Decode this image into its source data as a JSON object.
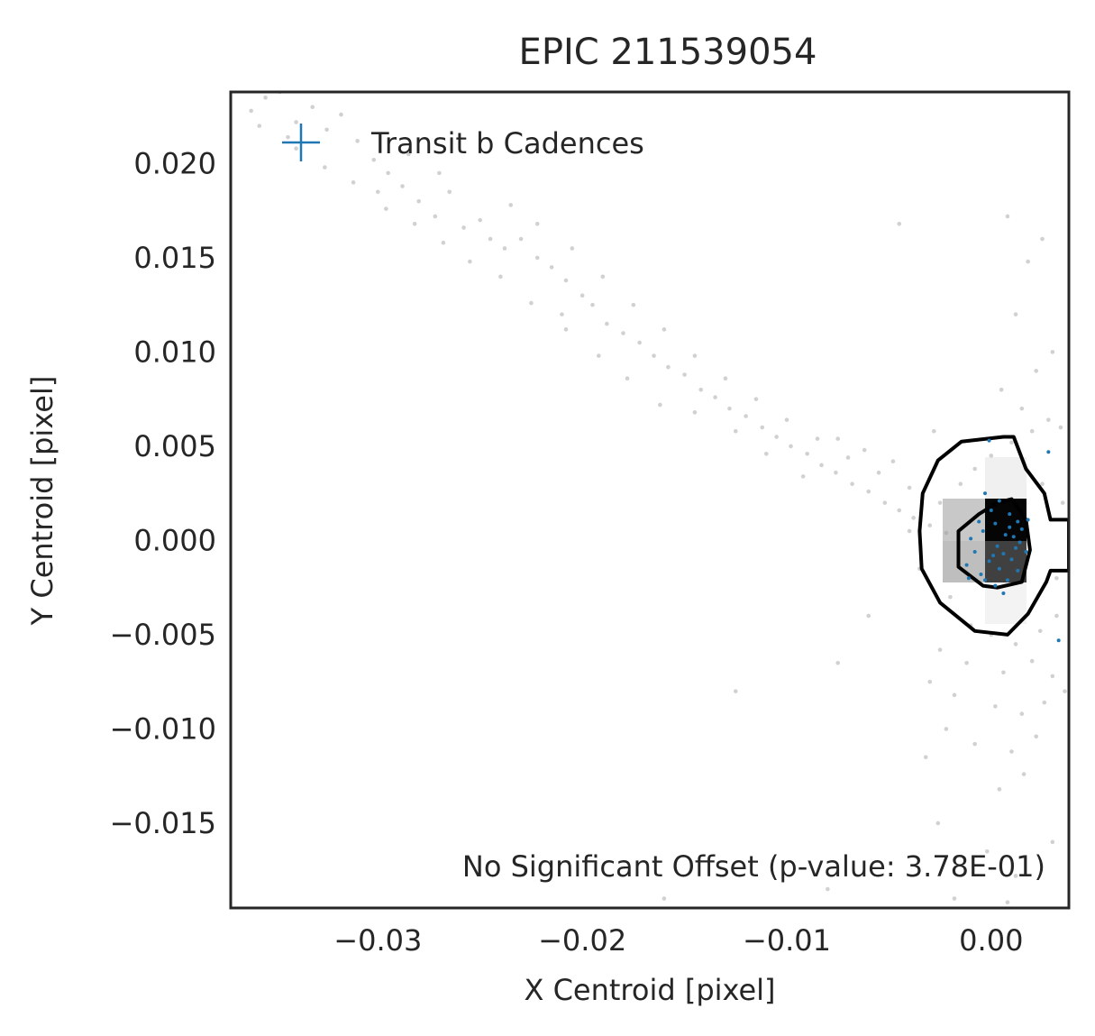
{
  "chart_data": {
    "type": "scatter",
    "title": "EPIC 211539054",
    "xlabel": "X Centroid [pixel]",
    "ylabel": "Y Centroid [pixel]",
    "xlim": [
      -0.0372,
      0.0038
    ],
    "ylim": [
      -0.0195,
      0.0238
    ],
    "xticks": [
      -0.03,
      -0.02,
      -0.01,
      0.0
    ],
    "xtick_labels": [
      "−0.03",
      "−0.02",
      "−0.01",
      "0.00"
    ],
    "yticks": [
      0.02,
      0.015,
      0.01,
      0.005,
      0.0,
      -0.005,
      -0.01,
      -0.015
    ],
    "ytick_labels": [
      "0.020",
      "0.015",
      "0.010",
      "0.005",
      "0.000",
      "−0.005",
      "−0.010",
      "−0.015"
    ],
    "grid": false,
    "legend": {
      "position": "top-left",
      "entries": [
        {
          "label": "Transit b Cadences",
          "marker": "plus",
          "color": "#1f77b4"
        }
      ]
    },
    "annotation": "No Significant Offset (p-value: 3.78E-01)",
    "colors": {
      "transit": "#1f77b4",
      "background": "#9a9a9a",
      "contour": "#000000",
      "frame": "#262626"
    },
    "series": [
      {
        "name": "Transit b Cadences",
        "points": [
          [
            -0.0003,
            0.0025
          ],
          [
            0.0004,
            0.0021
          ],
          [
            0.0009,
            0.0014
          ],
          [
            0.0013,
            0.001
          ],
          [
            0.0002,
            0.0009
          ],
          [
            -0.0004,
            0.0005
          ],
          [
            0.0007,
            0.0003
          ],
          [
            0.0011,
            0.0002
          ],
          [
            0.0014,
            -0.0001
          ],
          [
            0.0003,
            -0.0003
          ],
          [
            -0.0008,
            -0.0006
          ],
          [
            0.0006,
            -0.0007
          ],
          [
            0.001,
            -0.001
          ],
          [
            -0.0001,
            -0.0011
          ],
          [
            -0.0012,
            -0.0013
          ],
          [
            0.0004,
            -0.0015
          ],
          [
            0.0013,
            -0.0016
          ],
          [
            -0.0005,
            -0.0018
          ],
          [
            0.0008,
            -0.0021
          ],
          [
            0.0002,
            -0.0024
          ],
          [
            0.0015,
            0.0006
          ],
          [
            -0.001,
            0.0001
          ],
          [
            0.0,
            0.0016
          ],
          [
            0.0018,
            0.0011
          ],
          [
            -0.0003,
            -0.0021
          ],
          [
            0.0006,
            -0.0028
          ],
          [
            0.0028,
            0.0047
          ],
          [
            0.0033,
            -0.0053
          ],
          [
            -0.0001,
            0.0053
          ],
          [
            0.0012,
            -0.0004
          ],
          [
            -0.0006,
            0.001
          ],
          [
            0.0009,
            0.0007
          ],
          [
            0.0001,
            -0.0008
          ],
          [
            0.0017,
            -0.0006
          ],
          [
            -0.0011,
            -0.002
          ]
        ]
      },
      {
        "name": "",
        "points": [
          [
            -0.0355,
            0.0235
          ],
          [
            -0.0348,
            0.0238
          ],
          [
            -0.0362,
            0.0228
          ],
          [
            -0.034,
            0.0222
          ],
          [
            -0.0332,
            0.023
          ],
          [
            -0.0325,
            0.0218
          ],
          [
            -0.0318,
            0.0226
          ],
          [
            -0.034,
            0.0208
          ],
          [
            -0.031,
            0.0212
          ],
          [
            -0.0302,
            0.0202
          ],
          [
            -0.0295,
            0.0195
          ],
          [
            -0.03,
            0.0185
          ],
          [
            -0.0288,
            0.0188
          ],
          [
            -0.028,
            0.018
          ],
          [
            -0.0272,
            0.0172
          ],
          [
            -0.0265,
            0.0185
          ],
          [
            -0.0258,
            0.0166
          ],
          [
            -0.025,
            0.017
          ],
          [
            -0.0245,
            0.016
          ],
          [
            -0.0238,
            0.0155
          ],
          [
            -0.023,
            0.016
          ],
          [
            -0.0222,
            0.015
          ],
          [
            -0.0215,
            0.0145
          ],
          [
            -0.0208,
            0.0138
          ],
          [
            -0.02,
            0.013
          ],
          [
            -0.021,
            0.012
          ],
          [
            -0.0195,
            0.0125
          ],
          [
            -0.0188,
            0.0115
          ],
          [
            -0.018,
            0.011
          ],
          [
            -0.0172,
            0.0105
          ],
          [
            -0.0165,
            0.0098
          ],
          [
            -0.0158,
            0.0092
          ],
          [
            -0.015,
            0.0088
          ],
          [
            -0.0142,
            0.008
          ],
          [
            -0.0135,
            0.0076
          ],
          [
            -0.0128,
            0.007
          ],
          [
            -0.012,
            0.0066
          ],
          [
            -0.0112,
            0.006
          ],
          [
            -0.0105,
            0.0055
          ],
          [
            -0.0098,
            0.005
          ],
          [
            -0.009,
            0.0046
          ],
          [
            -0.0083,
            0.004
          ],
          [
            -0.0076,
            0.0036
          ],
          [
            -0.0068,
            0.003
          ],
          [
            -0.006,
            0.0026
          ],
          [
            -0.0052,
            0.002
          ],
          [
            -0.0045,
            0.0016
          ],
          [
            -0.0038,
            0.0012
          ],
          [
            -0.003,
            0.0008
          ],
          [
            -0.0022,
            0.0004
          ],
          [
            -0.0285,
            0.0205
          ],
          [
            -0.027,
            0.0195
          ],
          [
            -0.0235,
            0.0178
          ],
          [
            -0.0222,
            0.0168
          ],
          [
            -0.0205,
            0.0155
          ],
          [
            -0.019,
            0.014
          ],
          [
            -0.0175,
            0.0125
          ],
          [
            -0.016,
            0.0112
          ],
          [
            -0.0145,
            0.0098
          ],
          [
            -0.013,
            0.0086
          ],
          [
            -0.0115,
            0.0075
          ],
          [
            -0.01,
            0.0064
          ],
          [
            -0.0085,
            0.0054
          ],
          [
            -0.007,
            0.0044
          ],
          [
            -0.0055,
            0.0036
          ],
          [
            -0.004,
            0.0028
          ],
          [
            -0.0025,
            0.002
          ],
          [
            -0.0015,
            0.003
          ],
          [
            -0.0008,
            0.0038
          ],
          [
            0.0,
            0.0045
          ],
          [
            0.001,
            0.0052
          ],
          [
            0.002,
            0.0058
          ],
          [
            0.0028,
            0.0064
          ],
          [
            0.0034,
            0.006
          ],
          [
            0.0015,
            0.007
          ],
          [
            0.0005,
            0.008
          ],
          [
            0.0022,
            0.009
          ],
          [
            0.003,
            0.01
          ],
          [
            0.0012,
            0.012
          ],
          [
            0.0025,
            0.016
          ],
          [
            0.0008,
            0.0172
          ],
          [
            0.0018,
            0.0148
          ],
          [
            -0.0045,
            0.0168
          ],
          [
            -0.0028,
            0.0058
          ],
          [
            -0.0048,
            0.0042
          ],
          [
            -0.0062,
            0.0048
          ],
          [
            -0.0075,
            0.0054
          ],
          [
            -0.0092,
            0.0034
          ],
          [
            -0.011,
            0.0046
          ],
          [
            -0.0125,
            0.0058
          ],
          [
            -0.0145,
            0.0068
          ],
          [
            -0.0162,
            0.0072
          ],
          [
            -0.0178,
            0.0086
          ],
          [
            -0.0192,
            0.0098
          ],
          [
            -0.0208,
            0.0112
          ],
          [
            -0.0225,
            0.0126
          ],
          [
            -0.024,
            0.014
          ],
          [
            -0.0255,
            0.0148
          ],
          [
            -0.0268,
            0.0158
          ],
          [
            -0.0282,
            0.0168
          ],
          [
            -0.0296,
            0.0176
          ],
          [
            -0.0312,
            0.019
          ],
          [
            -0.0326,
            0.0198
          ],
          [
            -0.0344,
            0.0214
          ],
          [
            -0.0358,
            0.022
          ],
          [
            -0.002,
            -0.003
          ],
          [
            -0.001,
            -0.0045
          ],
          [
            0.0,
            -0.005
          ],
          [
            0.0012,
            -0.0055
          ],
          [
            0.0024,
            -0.0048
          ],
          [
            0.0032,
            -0.004
          ],
          [
            -0.0025,
            -0.0058
          ],
          [
            -0.0012,
            -0.0065
          ],
          [
            0.0006,
            -0.007
          ],
          [
            0.002,
            -0.0064
          ],
          [
            0.003,
            -0.0072
          ],
          [
            0.0036,
            -0.008
          ],
          [
            -0.003,
            -0.0075
          ],
          [
            -0.0018,
            -0.0082
          ],
          [
            0.0002,
            -0.0088
          ],
          [
            0.0015,
            -0.0092
          ],
          [
            0.0026,
            -0.0086
          ],
          [
            -0.0022,
            -0.01
          ],
          [
            -0.0008,
            -0.0108
          ],
          [
            0.001,
            -0.0112
          ],
          [
            0.0022,
            -0.0104
          ],
          [
            -0.0032,
            -0.0115
          ],
          [
            0.0004,
            -0.0132
          ],
          [
            0.0016,
            -0.0124
          ],
          [
            -0.0026,
            -0.015
          ],
          [
            -0.0002,
            -0.0165
          ],
          [
            0.0012,
            -0.0178
          ],
          [
            -0.0018,
            -0.019
          ],
          [
            0.0008,
            -0.0192
          ],
          [
            0.003,
            -0.016
          ],
          [
            -0.006,
            -0.004
          ],
          [
            -0.0075,
            -0.0065
          ],
          [
            -0.0125,
            -0.008
          ],
          [
            -0.016,
            -0.019
          ],
          [
            -0.008,
            -0.0185
          ],
          [
            0.0035,
            0.002
          ],
          [
            0.0032,
            -0.002
          ],
          [
            0.0025,
            0.003
          ],
          [
            -0.0035,
            -0.0015
          ],
          [
            -0.004,
            0.0005
          ]
        ]
      }
    ],
    "contours": [
      [
        [
          -0.00145,
          0.00525
        ],
        [
          -0.0026,
          0.00425
        ],
        [
          -0.00335,
          0.0025
        ],
        [
          -0.0035,
          0.0005
        ],
        [
          -0.0034,
          -0.0015
        ],
        [
          -0.0025,
          -0.0033
        ],
        [
          -0.0008,
          -0.0048
        ],
        [
          0.0008,
          -0.005
        ],
        [
          0.0018,
          -0.0039
        ],
        [
          0.0027,
          -0.0022
        ],
        [
          0.0029,
          -0.0016
        ],
        [
          0.0038,
          -0.0016
        ],
        [
          0.0038,
          0.0011
        ],
        [
          0.0029,
          0.0011
        ],
        [
          0.0026,
          0.0025
        ],
        [
          0.0017,
          0.0038
        ],
        [
          0.0011,
          0.0055
        ],
        [
          0.0006,
          0.0055
        ]
      ],
      [
        [
          0.001,
          0.0022
        ],
        [
          0.0017,
          0.0011
        ],
        [
          0.0019,
          -0.0005
        ],
        [
          0.0015,
          -0.0022
        ],
        [
          0.0003,
          -0.0025
        ],
        [
          -0.0004,
          -0.0024
        ],
        [
          -0.0016,
          -0.0014
        ],
        [
          -0.0016,
          0.0005
        ],
        [
          -0.0006,
          0.0014
        ],
        [
          0.0003,
          0.002
        ]
      ]
    ]
  }
}
